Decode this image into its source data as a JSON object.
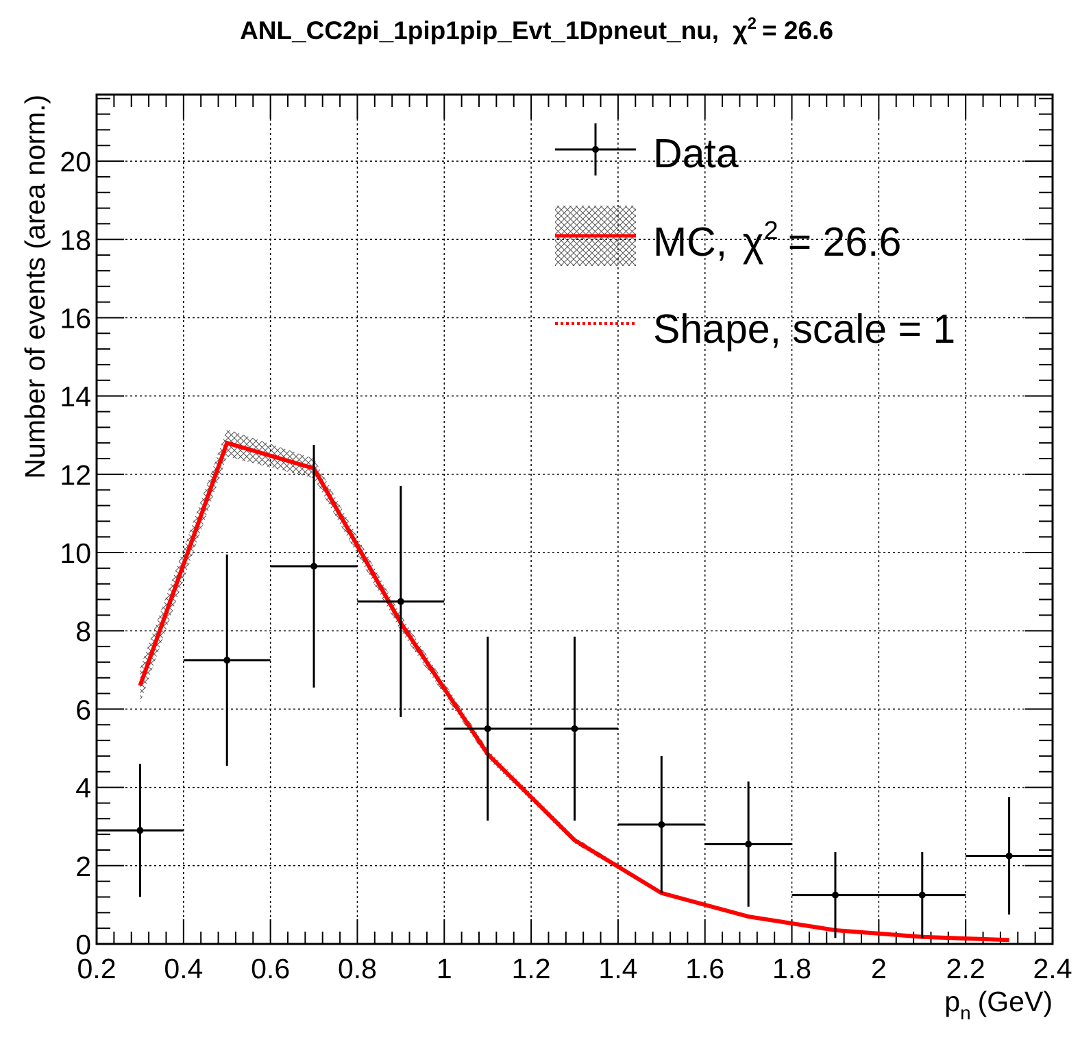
{
  "chart_data": {
    "type": "line",
    "title_main": "ANL_CC2pi_1pip1pip_Evt_1Dpneut_nu,",
    "title_chi": "χ",
    "title_sup": "2",
    "title_rest": "= 26.6",
    "xlabel_main": "p",
    "xlabel_sub": "n",
    "xlabel_unit": "(GeV)",
    "ylabel": "Number of events (area norm.)",
    "xlim": [
      0.2,
      2.4
    ],
    "ylim": [
      0,
      21.7
    ],
    "grid": true,
    "x_ticks": [
      {
        "v": 0.2,
        "label": "0.2"
      },
      {
        "v": 0.4,
        "label": "0.4"
      },
      {
        "v": 0.6,
        "label": "0.6"
      },
      {
        "v": 0.8,
        "label": "0.8"
      },
      {
        "v": 1.0,
        "label": "1"
      },
      {
        "v": 1.2,
        "label": "1.2"
      },
      {
        "v": 1.4,
        "label": "1.4"
      },
      {
        "v": 1.6,
        "label": "1.6"
      },
      {
        "v": 1.8,
        "label": "1.8"
      },
      {
        "v": 2.0,
        "label": "2"
      },
      {
        "v": 2.2,
        "label": "2.2"
      },
      {
        "v": 2.4,
        "label": "2.4"
      }
    ],
    "y_ticks": [
      {
        "v": 0,
        "label": "0"
      },
      {
        "v": 2,
        "label": "2"
      },
      {
        "v": 4,
        "label": "4"
      },
      {
        "v": 6,
        "label": "6"
      },
      {
        "v": 8,
        "label": "8"
      },
      {
        "v": 10,
        "label": "10"
      },
      {
        "v": 12,
        "label": "12"
      },
      {
        "v": 14,
        "label": "14"
      },
      {
        "v": 16,
        "label": "16"
      },
      {
        "v": 18,
        "label": "18"
      },
      {
        "v": 20,
        "label": "20"
      }
    ],
    "legend": {
      "placement": "top-right",
      "data_label": "Data",
      "mc_label_main": "MC,",
      "mc_label_chi": "χ",
      "mc_label_sup": "2",
      "mc_label_rest": "= 26.6",
      "shape_label": "Shape, scale = 1"
    },
    "data_points": [
      {
        "x": 0.3,
        "xerr": 0.1,
        "y": 2.9,
        "yerr": 1.7
      },
      {
        "x": 0.5,
        "xerr": 0.1,
        "y": 7.25,
        "yerr": 2.7
      },
      {
        "x": 0.7,
        "xerr": 0.1,
        "y": 9.65,
        "yerr": 3.1
      },
      {
        "x": 0.9,
        "xerr": 0.1,
        "y": 8.75,
        "yerr": 2.95
      },
      {
        "x": 1.1,
        "xerr": 0.1,
        "y": 5.5,
        "yerr": 2.35
      },
      {
        "x": 1.3,
        "xerr": 0.1,
        "y": 5.5,
        "yerr": 2.35
      },
      {
        "x": 1.5,
        "xerr": 0.1,
        "y": 3.05,
        "yerr": 1.75
      },
      {
        "x": 1.7,
        "xerr": 0.1,
        "y": 2.55,
        "yerr": 1.6
      },
      {
        "x": 1.9,
        "xerr": 0.1,
        "y": 1.25,
        "yerr": 1.1
      },
      {
        "x": 2.1,
        "xerr": 0.1,
        "y": 1.25,
        "yerr": 1.1
      },
      {
        "x": 2.3,
        "xerr": 0.1,
        "y": 2.25,
        "yerr": 1.5
      }
    ],
    "mc": {
      "x": [
        0.3,
        0.5,
        0.7,
        0.9,
        1.1,
        1.3,
        1.5,
        1.7,
        1.9,
        2.1,
        2.3
      ],
      "y": [
        6.6,
        12.8,
        12.15,
        8.2,
        4.85,
        2.65,
        1.3,
        0.7,
        0.35,
        0.18,
        0.1
      ],
      "band": [
        0.45,
        0.35,
        0.25,
        0.2,
        0.12,
        0.08,
        0.05,
        0.03,
        0.02,
        0.01,
        0.01
      ],
      "color": "#ff0000"
    }
  }
}
